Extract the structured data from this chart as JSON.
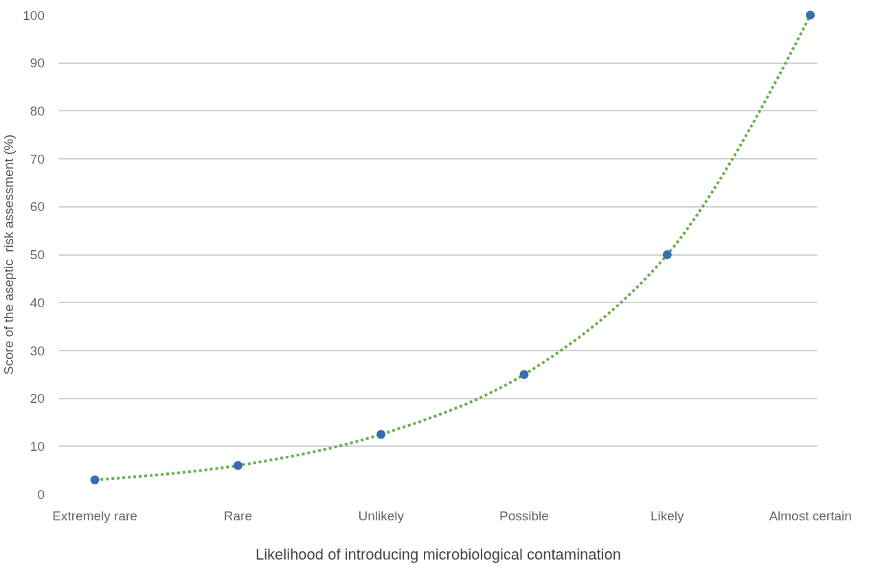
{
  "chart_data": {
    "type": "line",
    "categories": [
      "Extremely rare",
      "Rare",
      "Unlikely",
      "Possible",
      "Likely",
      "Almost certain"
    ],
    "series": [
      {
        "color": "#6ab04c",
        "colors": [
          "#3a6db0",
          "#3a6db0",
          "#3a6db0",
          "#3a6db0",
          "#3a6db0",
          "#3a6db0"
        ],
        "values": [
          3,
          6,
          12.5,
          25,
          50,
          100
        ]
      }
    ],
    "ylim": [
      0,
      100
    ],
    "yticks": [
      0,
      10,
      20,
      30,
      40,
      50,
      60,
      70,
      80,
      90,
      100
    ],
    "xlabel": "Likelihood of introducing microbiological contamination",
    "ylabel": "Score of the aseptic  risk assessment (%)",
    "grid": "y",
    "legend": false,
    "marker": "circle",
    "line_style": "dotted"
  }
}
